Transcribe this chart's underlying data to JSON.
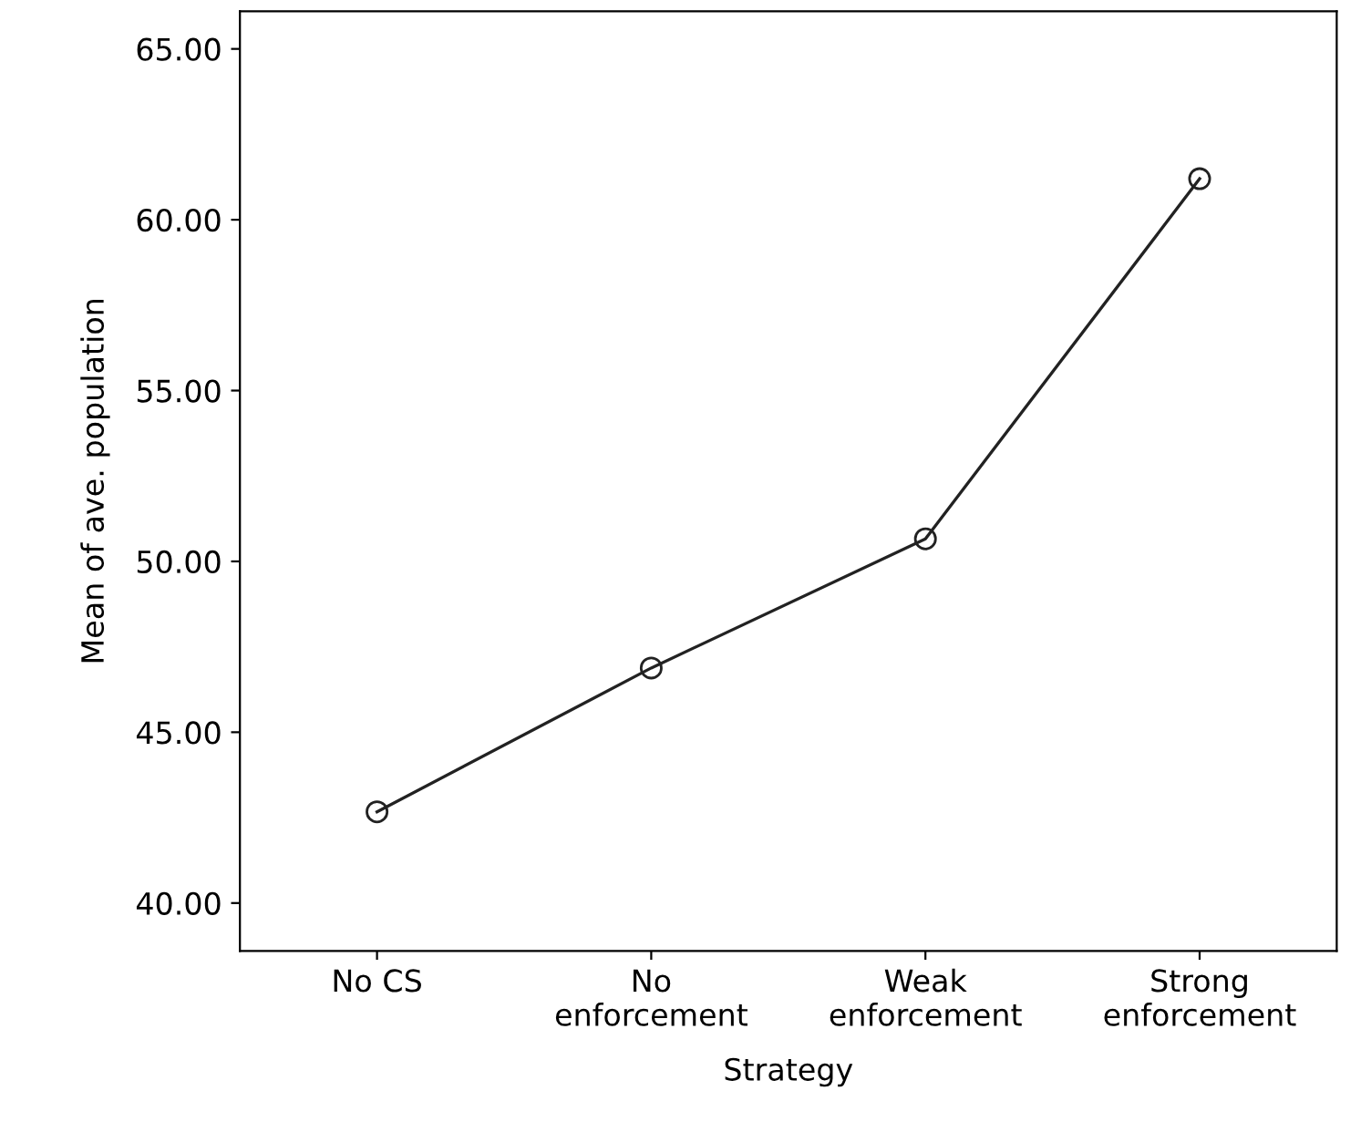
{
  "chart_data": {
    "type": "line",
    "xlabel": "Strategy",
    "ylabel": "Mean of ave. population",
    "categories": [
      "No CS",
      "No\nenforcement",
      "Weak\nenforcement",
      "Strong\nenforcement"
    ],
    "values": [
      42.67,
      46.88,
      50.66,
      61.2
    ],
    "color": "#222222",
    "marker": "circle",
    "line_style": "solid",
    "ylim": [
      38.6,
      66.1
    ],
    "yticks": [
      {
        "value": 40,
        "label": "40.00"
      },
      {
        "value": 45,
        "label": "45.00"
      },
      {
        "value": 50,
        "label": "50.00"
      },
      {
        "value": 55,
        "label": "55.00"
      },
      {
        "value": 60,
        "label": "60.00"
      },
      {
        "value": 65,
        "label": "65.00"
      }
    ],
    "grid": false,
    "legend": false
  }
}
